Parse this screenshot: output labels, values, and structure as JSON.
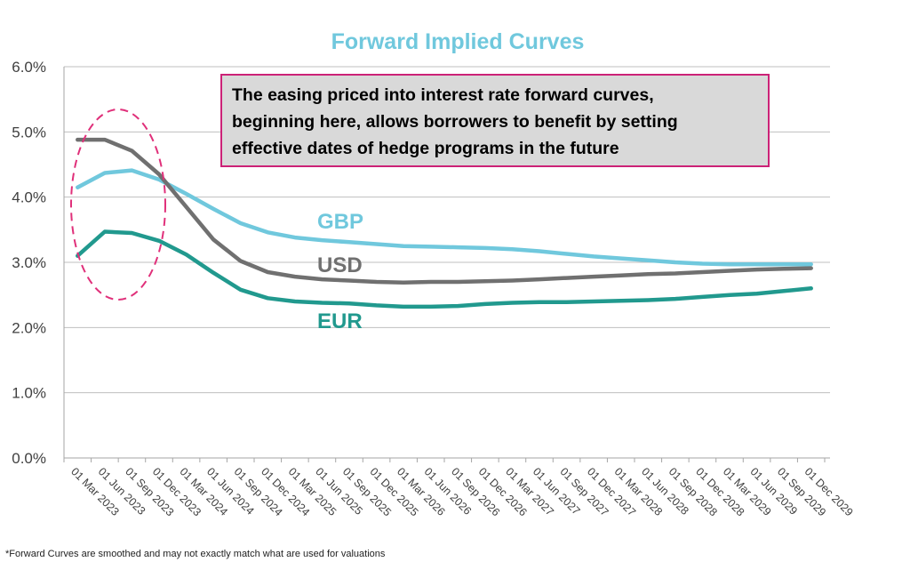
{
  "chart_data": {
    "type": "line",
    "title": "Forward Implied Curves",
    "xlabel": "",
    "ylabel": "",
    "ylim": [
      0,
      6
    ],
    "yticks": [
      "0.0%",
      "1.0%",
      "2.0%",
      "3.0%",
      "4.0%",
      "5.0%",
      "6.0%"
    ],
    "grid": true,
    "categories": [
      "01 Mar 2023",
      "01 Jun 2023",
      "01 Sep 2023",
      "01 Dec 2023",
      "01 Mar 2024",
      "01 Jun 2024",
      "01 Sep 2024",
      "01 Dec 2024",
      "01 Mar 2025",
      "01 Jun 2025",
      "01 Sep 2025",
      "01 Dec 2025",
      "01 Mar 2026",
      "01 Jun 2026",
      "01 Sep 2026",
      "01 Dec 2026",
      "01 Mar 2027",
      "01 Jun 2027",
      "01 Sep 2027",
      "01 Dec 2027",
      "01 Mar 2028",
      "01 Jun 2028",
      "01 Sep 2028",
      "01 Dec 2028",
      "01 Mar 2029",
      "01 Jun 2029",
      "01 Sep 2029",
      "01 Dec 2029"
    ],
    "series": [
      {
        "name": "GBP",
        "color": "#70c8dd",
        "values": [
          4.15,
          4.37,
          4.41,
          4.27,
          4.05,
          3.82,
          3.6,
          3.46,
          3.38,
          3.34,
          3.31,
          3.28,
          3.25,
          3.24,
          3.23,
          3.22,
          3.2,
          3.17,
          3.13,
          3.09,
          3.06,
          3.03,
          3.0,
          2.98,
          2.97,
          2.97,
          2.97,
          2.97
        ]
      },
      {
        "name": "USD",
        "color": "#707070",
        "values": [
          4.88,
          4.88,
          4.71,
          4.35,
          3.85,
          3.35,
          3.02,
          2.85,
          2.78,
          2.74,
          2.72,
          2.7,
          2.69,
          2.7,
          2.7,
          2.71,
          2.72,
          2.74,
          2.76,
          2.78,
          2.8,
          2.82,
          2.83,
          2.85,
          2.87,
          2.89,
          2.9,
          2.91
        ]
      },
      {
        "name": "EUR",
        "color": "#21998e",
        "values": [
          3.1,
          3.47,
          3.45,
          3.33,
          3.12,
          2.84,
          2.58,
          2.45,
          2.4,
          2.38,
          2.37,
          2.34,
          2.32,
          2.32,
          2.33,
          2.36,
          2.38,
          2.39,
          2.39,
          2.4,
          2.41,
          2.42,
          2.44,
          2.47,
          2.5,
          2.52,
          2.56,
          2.6
        ]
      }
    ],
    "annotation": {
      "text_lines": [
        "The easing priced into interest rate forward curves,",
        "beginning here, allows borrowers to benefit by setting",
        "effective dates of hedge programs in the future"
      ],
      "box_fill": "#d9d9d9",
      "box_border": "#cc2277",
      "ellipse_color": "#e0307a"
    },
    "footnote": "*Forward Curves are smoothed and may not exactly match what are used for valuations"
  }
}
